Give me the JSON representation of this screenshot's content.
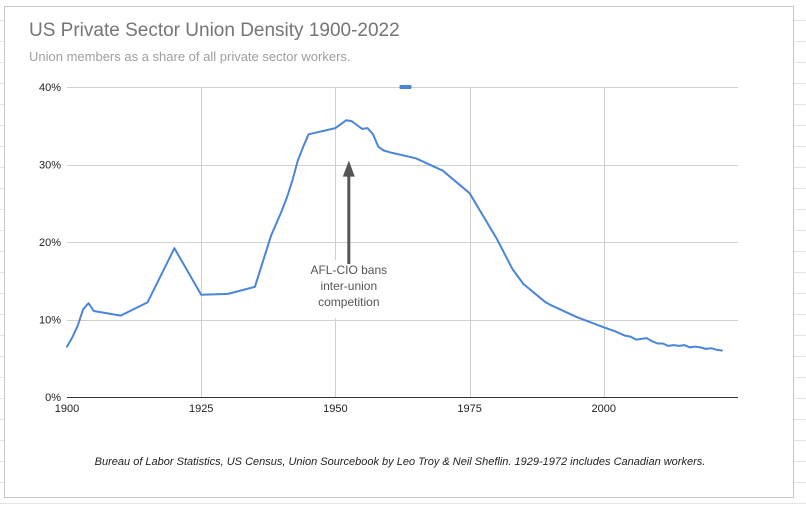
{
  "chart_data": {
    "type": "line",
    "title": "US Private Sector Union Density 1900-2022",
    "subtitle": "Union members as a share of all private sector workers.",
    "source_note": "Bureau of Labor Statistics, US Census, Union Sourcebook by Leo Troy & Neil Sheflin. 1929-1972 includes Canadian workers.",
    "xlabel": "",
    "ylabel": "",
    "xlim": [
      1900,
      2025
    ],
    "ylim": [
      0,
      40
    ],
    "x_ticks": [
      1900,
      1925,
      1950,
      1975,
      2000
    ],
    "y_ticks": [
      {
        "value": 0,
        "label": "0%"
      },
      {
        "value": 10,
        "label": "10%"
      },
      {
        "value": 20,
        "label": "20%"
      },
      {
        "value": 30,
        "label": "30%"
      },
      {
        "value": 40,
        "label": "40%"
      }
    ],
    "grid": true,
    "legend": "top-center",
    "series": [
      {
        "name": "",
        "color": "#4a86d8",
        "x": [
          1900,
          1901,
          1902,
          1903,
          1904,
          1905,
          1910,
          1915,
          1920,
          1925,
          1930,
          1935,
          1938,
          1940,
          1941,
          1942,
          1943,
          1944,
          1945,
          1950,
          1952,
          1953,
          1954,
          1955,
          1956,
          1957,
          1958,
          1959,
          1960,
          1965,
          1970,
          1975,
          1980,
          1983,
          1985,
          1989,
          1990,
          1995,
          2000,
          2002,
          2003,
          2004,
          2005,
          2006,
          2007,
          2008,
          2009,
          2010,
          2011,
          2012,
          2013,
          2014,
          2015,
          2016,
          2017,
          2018,
          2019,
          2020,
          2021,
          2022
        ],
        "values": [
          6.5,
          7.7,
          9.2,
          11.3,
          12.1,
          11.1,
          10.5,
          12.2,
          19.2,
          13.2,
          13.3,
          14.2,
          20.8,
          24.0,
          25.8,
          28.0,
          30.5,
          32.3,
          33.9,
          34.7,
          35.7,
          35.6,
          35.1,
          34.6,
          34.7,
          33.9,
          32.3,
          31.8,
          31.6,
          30.8,
          29.2,
          26.3,
          20.5,
          16.5,
          14.6,
          12.3,
          11.9,
          10.3,
          9.0,
          8.5,
          8.2,
          7.9,
          7.8,
          7.4,
          7.5,
          7.6,
          7.2,
          6.9,
          6.9,
          6.6,
          6.7,
          6.6,
          6.7,
          6.4,
          6.5,
          6.4,
          6.2,
          6.3,
          6.1,
          6.0
        ]
      }
    ],
    "annotation": {
      "lines": [
        "AFL-CIO bans",
        "inter-union",
        "competition"
      ],
      "x": 1952.5,
      "y": 30.5
    }
  }
}
